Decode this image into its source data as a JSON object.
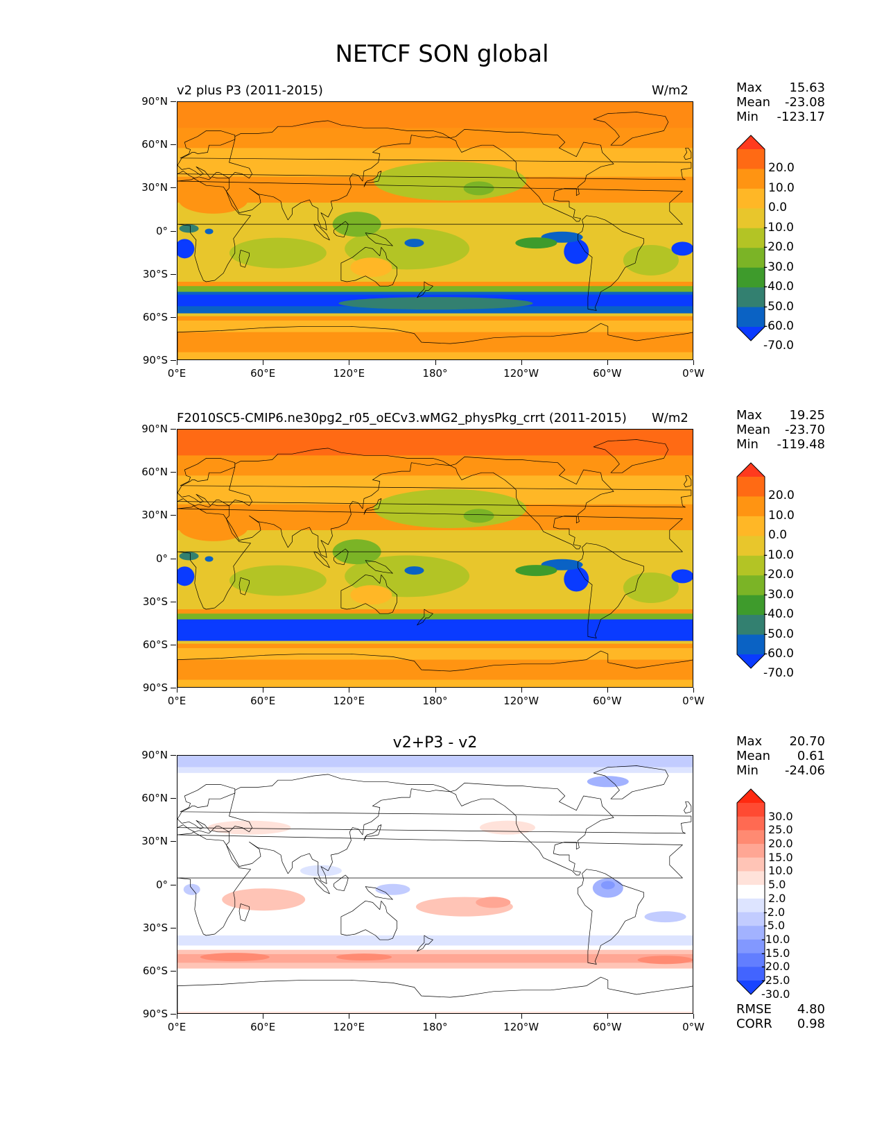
{
  "title": "NETCF SON global",
  "x_ticks": [
    "0°E",
    "60°E",
    "120°E",
    "180°",
    "120°W",
    "60°W",
    "0°W"
  ],
  "y_ticks": [
    "90°N",
    "60°N",
    "30°N",
    "0°",
    "30°S",
    "60°S",
    "90°S"
  ],
  "panels": [
    {
      "left_title": "v2 plus P3 (2011-2015)",
      "right_title": "W/m2",
      "center_title": "",
      "stats": [
        {
          "label": "Max",
          "value": "15.63"
        },
        {
          "label": "Mean",
          "value": "-23.08"
        },
        {
          "label": "Min",
          "value": "-123.17"
        }
      ],
      "colorbar": {
        "labels": [
          "20.0",
          "10.0",
          "0.0",
          "-10.0",
          "-20.0",
          "-30.0",
          "-40.0",
          "-50.0",
          "-60.0",
          "-70.0"
        ],
        "colors": [
          "#ff3a1e",
          "#ff6a14",
          "#ff9412",
          "#ffb726",
          "#e8c62c",
          "#b3c425",
          "#7bb426",
          "#3e9b2c",
          "#338070",
          "#0a62c4",
          "#0a3bff"
        ]
      }
    },
    {
      "left_title": "F2010SC5-CMIP6.ne30pg2_r05_oECv3.wMG2_physPkg_crrt (2011-2015)",
      "right_title": "W/m2",
      "center_title": "",
      "stats": [
        {
          "label": "Max",
          "value": "19.25"
        },
        {
          "label": "Mean",
          "value": "-23.70"
        },
        {
          "label": "Min",
          "value": "-119.48"
        }
      ],
      "colorbar": {
        "labels": [
          "20.0",
          "10.0",
          "0.0",
          "-10.0",
          "-20.0",
          "-30.0",
          "-40.0",
          "-50.0",
          "-60.0",
          "-70.0"
        ],
        "colors": [
          "#ff3a1e",
          "#ff6a14",
          "#ff9412",
          "#ffb726",
          "#e8c62c",
          "#b3c425",
          "#7bb426",
          "#3e9b2c",
          "#338070",
          "#0a62c4",
          "#0a3bff"
        ]
      }
    },
    {
      "left_title": "",
      "right_title": "",
      "center_title": "v2+P3 - v2",
      "stats": [
        {
          "label": "Max",
          "value": "20.70"
        },
        {
          "label": "Mean",
          "value": "0.61"
        },
        {
          "label": "Min",
          "value": "-24.06"
        }
      ],
      "colorbar": {
        "labels": [
          "30.0",
          "25.0",
          "20.0",
          "15.0",
          "10.0",
          "5.0",
          "2.0",
          "-2.0",
          "-5.0",
          "-10.0",
          "-15.0",
          "-20.0",
          "-25.0",
          "-30.0"
        ],
        "colors": [
          "#ff2a10",
          "#ff4a32",
          "#ff6a52",
          "#ff8a72",
          "#ffa694",
          "#ffc4b6",
          "#ffe2da",
          "#ffffff",
          "#dde4ff",
          "#c2ccff",
          "#a2b2ff",
          "#8298ff",
          "#627eff",
          "#4264ff",
          "#1844ff"
        ]
      },
      "footer": [
        {
          "label": "RMSE",
          "value": "4.80"
        },
        {
          "label": "CORR",
          "value": "0.98"
        }
      ]
    }
  ]
}
